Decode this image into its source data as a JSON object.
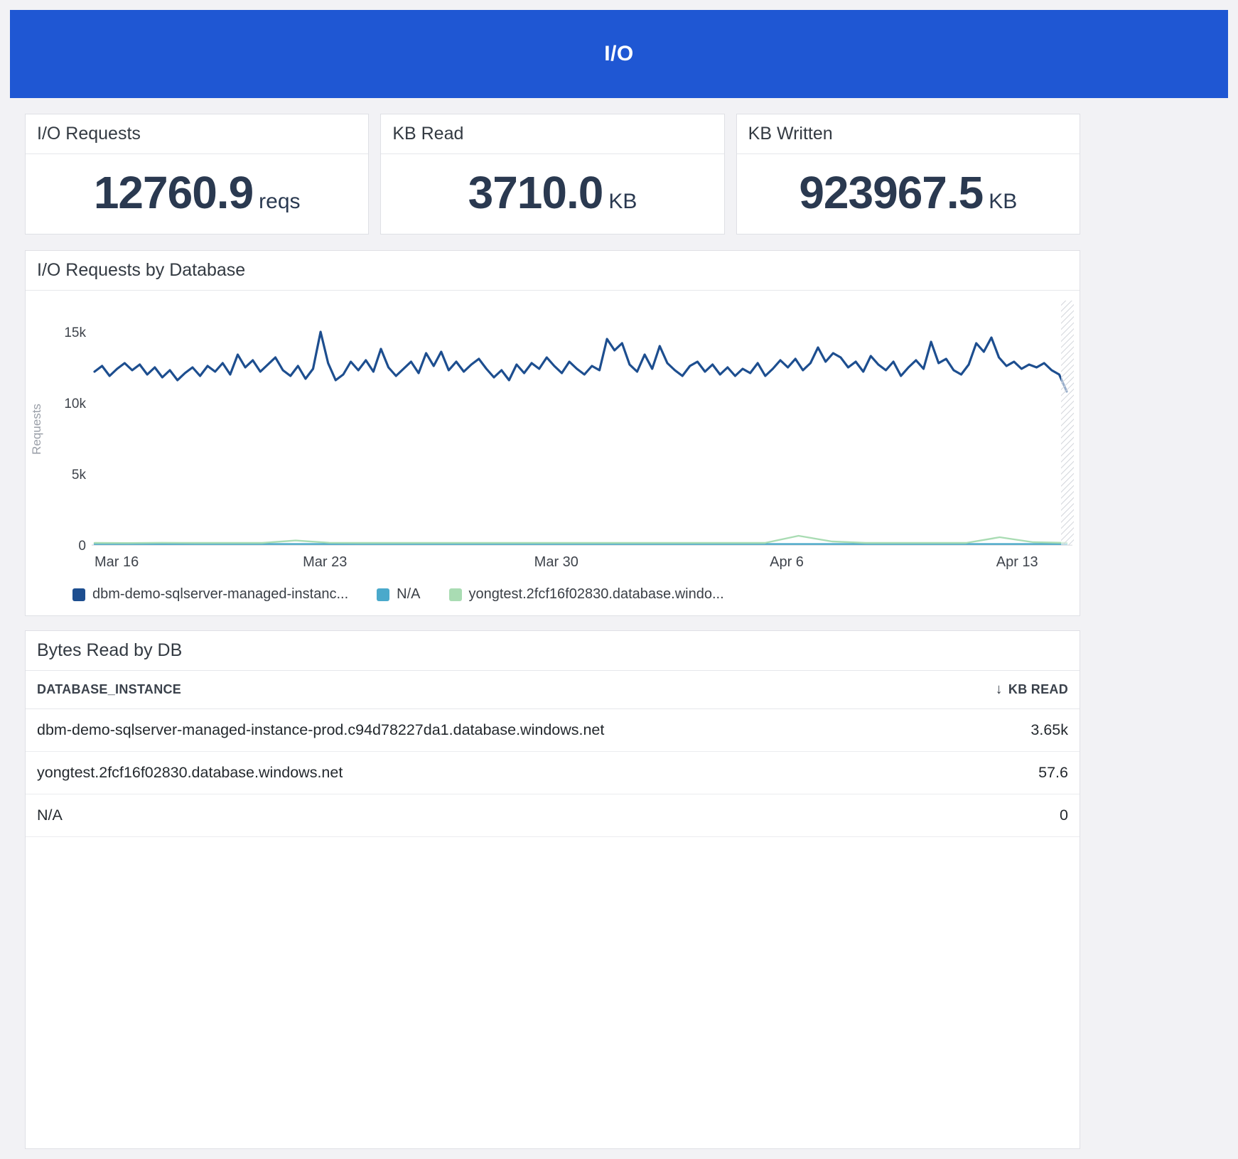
{
  "header": {
    "title": "I/O",
    "bg_color": "#1f57d3"
  },
  "stats": [
    {
      "label": "I/O Requests",
      "value": "12760.9",
      "unit": "reqs"
    },
    {
      "label": "KB Read",
      "value": "3710.0",
      "unit": "KB"
    },
    {
      "label": "KB Written",
      "value": "923967.5",
      "unit": "KB"
    }
  ],
  "chart_panel": {
    "title": "I/O Requests by Database"
  },
  "chart_data": {
    "type": "line",
    "title": "I/O Requests by Database",
    "ylabel": "Requests",
    "value_unit": "thousands of requests",
    "ylim": [
      0,
      16.3
    ],
    "grid": false,
    "legend_position": "bottom",
    "yticks": [
      {
        "value": 0,
        "label": "0"
      },
      {
        "value": 5,
        "label": "5k"
      },
      {
        "value": 10,
        "label": "10k"
      },
      {
        "value": 15,
        "label": "15k"
      }
    ],
    "xticks": [
      {
        "pos": 0.0,
        "label": "Mar 16"
      },
      {
        "pos": 0.237,
        "label": "Mar 23"
      },
      {
        "pos": 0.475,
        "label": "Mar 30"
      },
      {
        "pos": 0.712,
        "label": "Apr 6"
      },
      {
        "pos": 0.949,
        "label": "Apr 13"
      }
    ],
    "incomplete_right_edge": true,
    "series": [
      {
        "name": "dbm-demo-sqlserver-managed-instanc...",
        "color": "#1d4e8f",
        "line_width": 3.2,
        "values": [
          12.2,
          12.6,
          11.9,
          12.4,
          12.8,
          12.3,
          12.7,
          12.0,
          12.5,
          11.8,
          12.3,
          11.6,
          12.1,
          12.5,
          11.9,
          12.6,
          12.2,
          12.8,
          12.0,
          13.4,
          12.5,
          13.0,
          12.2,
          12.7,
          13.2,
          12.3,
          11.9,
          12.6,
          11.7,
          12.4,
          15.0,
          12.8,
          11.6,
          12.0,
          12.9,
          12.3,
          13.0,
          12.2,
          13.8,
          12.5,
          11.9,
          12.4,
          12.9,
          12.1,
          13.5,
          12.6,
          13.6,
          12.3,
          12.9,
          12.2,
          12.7,
          13.1,
          12.4,
          11.8,
          12.3,
          11.6,
          12.7,
          12.1,
          12.8,
          12.4,
          13.2,
          12.6,
          12.1,
          12.9,
          12.4,
          12.0,
          12.6,
          12.3,
          14.5,
          13.7,
          14.2,
          12.7,
          12.2,
          13.4,
          12.4,
          14.0,
          12.8,
          12.3,
          11.9,
          12.6,
          12.9,
          12.2,
          12.7,
          12.0,
          12.5,
          11.9,
          12.4,
          12.1,
          12.8,
          11.9,
          12.4,
          13.0,
          12.5,
          13.1,
          12.3,
          12.8,
          13.9,
          12.9,
          13.5,
          13.2,
          12.5,
          12.9,
          12.2,
          13.3,
          12.7,
          12.3,
          12.9,
          11.9,
          12.5,
          13.0,
          12.4,
          14.3,
          12.8,
          13.1,
          12.3,
          12.0,
          12.7,
          14.2,
          13.6,
          14.6,
          13.2,
          12.6,
          12.9,
          12.4,
          12.7,
          12.5,
          12.8,
          12.3,
          12.0,
          10.8
        ]
      },
      {
        "name": "N/A",
        "color": "#4aa9cb",
        "line_width": 2.4,
        "values": [
          0.07,
          0.07,
          0.07,
          0.07,
          0.07,
          0.07,
          0.07,
          0.07,
          0.07,
          0.07
        ]
      },
      {
        "name": "yongtest.2fcf16f02830.database.windo...",
        "color": "#a9dcb3",
        "line_width": 2.4,
        "values": [
          0.15,
          0.14,
          0.16,
          0.15,
          0.15,
          0.15,
          0.32,
          0.16,
          0.15,
          0.15,
          0.15,
          0.15,
          0.15,
          0.15,
          0.15,
          0.15,
          0.15,
          0.15,
          0.15,
          0.15,
          0.15,
          0.65,
          0.25,
          0.15,
          0.15,
          0.15,
          0.15,
          0.55,
          0.2,
          0.15
        ]
      }
    ]
  },
  "table_panel": {
    "title": "Bytes Read by DB",
    "columns": [
      "DATABASE_INSTANCE",
      "KB READ"
    ],
    "sort_icon": "↓",
    "rows": [
      {
        "instance": "dbm-demo-sqlserver-managed-instance-prod.c94d78227da1.database.windows.net",
        "kb_read": "3.65k"
      },
      {
        "instance": "yongtest.2fcf16f02830.database.windows.net",
        "kb_read": "57.6"
      },
      {
        "instance": "N/A",
        "kb_read": "0"
      }
    ]
  }
}
